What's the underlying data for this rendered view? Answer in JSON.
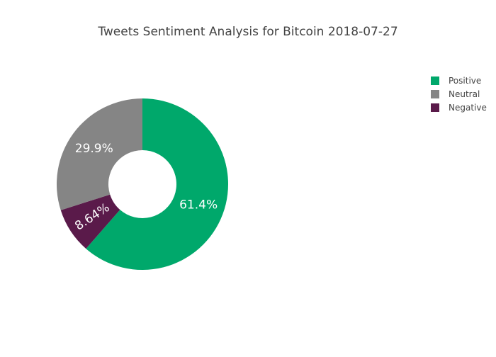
{
  "chart_data": {
    "type": "pie",
    "hole": true,
    "title": "Tweets Sentiment Analysis for Bitcoin 2018-07-27",
    "slices": [
      {
        "label": "Positive",
        "value": 61.4,
        "display": "61.4%",
        "color": "#00a86b"
      },
      {
        "label": "Negative",
        "value": 8.64,
        "display": "8.64%",
        "color": "#5a1a4a"
      },
      {
        "label": "Neutral",
        "value": 29.9,
        "display": "29.9%",
        "color": "#858585"
      }
    ],
    "legend": {
      "position": "top-right",
      "items": [
        {
          "label": "Positive",
          "color": "#00a86b"
        },
        {
          "label": "Neutral",
          "color": "#858585"
        },
        {
          "label": "Negative",
          "color": "#5a1a4a"
        }
      ]
    }
  }
}
